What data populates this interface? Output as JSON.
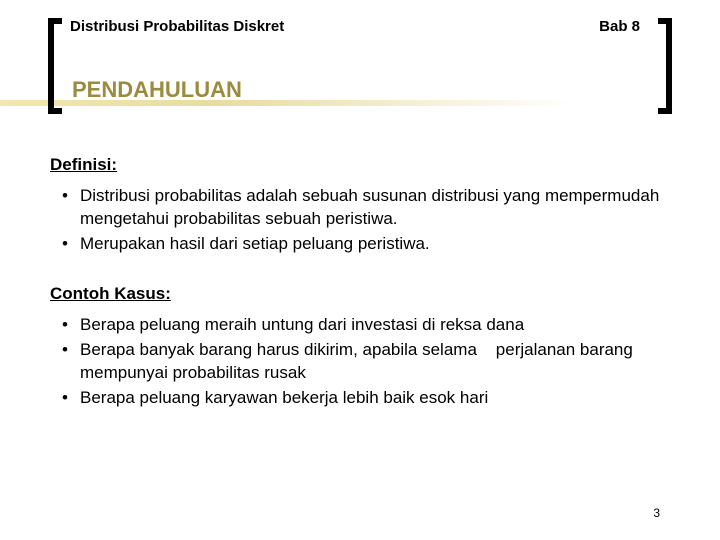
{
  "header": {
    "left": "Distribusi Probabilitas Diskret",
    "right": "Bab 8"
  },
  "section_title": "PENDAHULUAN",
  "definisi": {
    "heading": "Definisi:",
    "items": [
      "Distribusi probabilitas adalah sebuah susunan distribusi yang mempermudah mengetahui probabilitas sebuah peristiwa.",
      "Merupakan hasil dari setiap peluang peristiwa."
    ]
  },
  "contoh": {
    "heading": "Contoh Kasus:",
    "items": [
      "Berapa peluang meraih untung dari investasi di reksa dana",
      "Berapa banyak barang harus dikirim, apabila selama    perjalanan barang mempunyai probabilitas rusak",
      "Berapa peluang karyawan bekerja lebih baik esok hari"
    ]
  },
  "page_number": "3",
  "colors": {
    "title_color": "#9b8b3e",
    "text_color": "#000000",
    "background": "#ffffff"
  }
}
